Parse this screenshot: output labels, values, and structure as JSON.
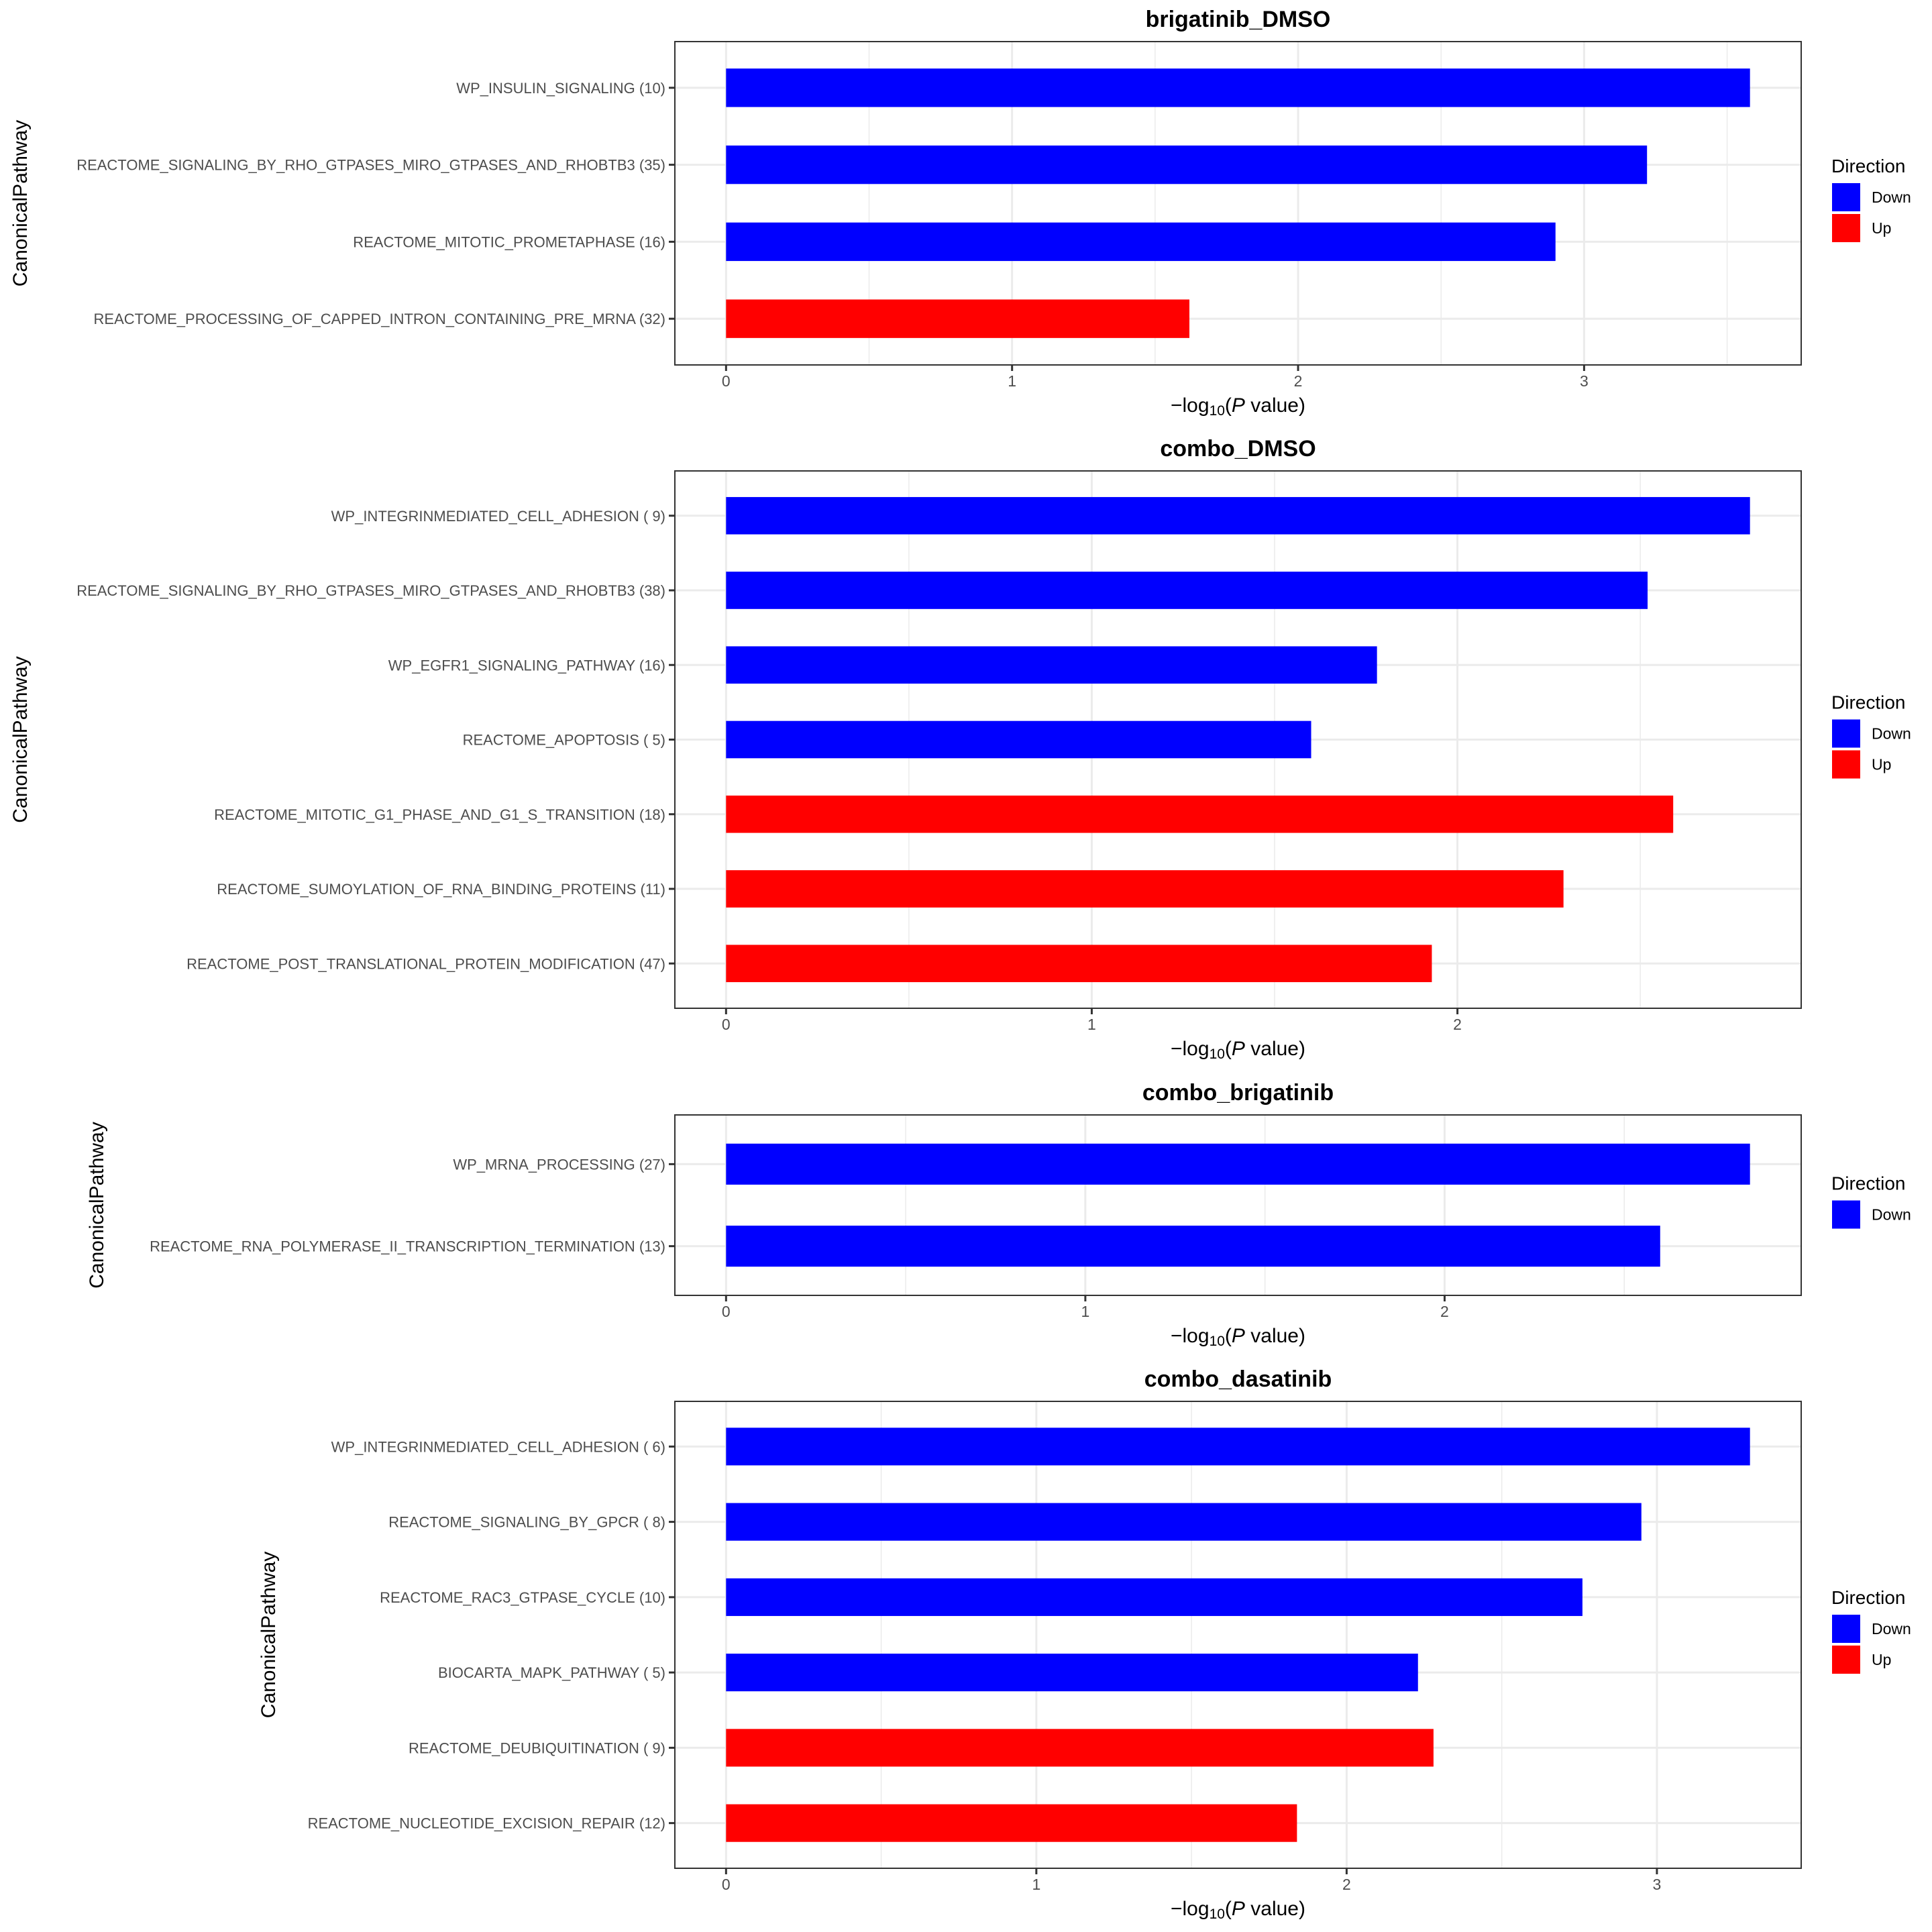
{
  "chart_data": [
    {
      "type": "bar",
      "orientation": "horizontal",
      "title": "brigatinib_DMSO",
      "xlabel": "-log10(P value)",
      "xlabel_parts": {
        "prefix": "−log",
        "sub": "10",
        "open": "(",
        "italic": "P",
        "rest": " value)"
      },
      "ylabel": "CanonicalPathway",
      "x_ticks": [
        "0",
        "1",
        "2",
        "3"
      ],
      "grid": true,
      "legend": {
        "title": "Direction",
        "position": "right",
        "entries": [
          {
            "label": "Down",
            "color": "#0000ff"
          },
          {
            "label": "Up",
            "color": "#ff0000"
          }
        ]
      },
      "categories": [
        "WP_INSULIN_SIGNALING (10)",
        "REACTOME_SIGNALING_BY_RHO_GTPASES_MIRO_GTPASES_AND_RHOBTB3 (35)",
        "REACTOME_MITOTIC_PROMETAPHASE (16)",
        "REACTOME_PROCESSING_OF_CAPPED_INTRON_CONTAINING_PRE_MRNA (32)"
      ],
      "values": [
        3.58,
        3.22,
        2.9,
        1.62
      ],
      "direction": [
        "Down",
        "Down",
        "Down",
        "Up"
      ]
    },
    {
      "type": "bar",
      "orientation": "horizontal",
      "title": "combo_DMSO",
      "xlabel": "-log10(P value)",
      "xlabel_parts": {
        "prefix": "−log",
        "sub": "10",
        "open": "(",
        "italic": "P",
        "rest": " value)"
      },
      "ylabel": "CanonicalPathway",
      "x_ticks": [
        "0",
        "1",
        "2"
      ],
      "grid": true,
      "legend": {
        "title": "Direction",
        "position": "right",
        "entries": [
          {
            "label": "Down",
            "color": "#0000ff"
          },
          {
            "label": "Up",
            "color": "#ff0000"
          }
        ]
      },
      "categories": [
        "WP_INTEGRINMEDIATED_CELL_ADHESION ( 9)",
        "REACTOME_SIGNALING_BY_RHO_GTPASES_MIRO_GTPASES_AND_RHOBTB3 (38)",
        "WP_EGFR1_SIGNALING_PATHWAY (16)",
        "REACTOME_APOPTOSIS ( 5)",
        "REACTOME_MITOTIC_G1_PHASE_AND_G1_S_TRANSITION (18)",
        "REACTOME_SUMOYLATION_OF_RNA_BINDING_PROTEINS (11)",
        "REACTOME_POST_TRANSLATIONAL_PROTEIN_MODIFICATION (47)"
      ],
      "values": [
        2.8,
        2.52,
        1.78,
        1.6,
        2.59,
        2.29,
        1.93
      ],
      "direction": [
        "Down",
        "Down",
        "Down",
        "Down",
        "Up",
        "Up",
        "Up"
      ]
    },
    {
      "type": "bar",
      "orientation": "horizontal",
      "title": "combo_brigatinib",
      "xlabel": "-log10(P value)",
      "xlabel_parts": {
        "prefix": "−log",
        "sub": "10",
        "open": "(",
        "italic": "P",
        "rest": " value)"
      },
      "ylabel": "CanonicalPathway",
      "x_ticks": [
        "0",
        "1",
        "2"
      ],
      "grid": true,
      "legend": {
        "title": "Direction",
        "position": "right",
        "entries": [
          {
            "label": "Down",
            "color": "#0000ff"
          }
        ]
      },
      "categories": [
        "WP_MRNA_PROCESSING (27)",
        "REACTOME_RNA_POLYMERASE_II_TRANSCRIPTION_TERMINATION (13)"
      ],
      "values": [
        2.85,
        2.6
      ],
      "direction": [
        "Down",
        "Down"
      ]
    },
    {
      "type": "bar",
      "orientation": "horizontal",
      "title": "combo_dasatinib",
      "xlabel": "-log10(P value)",
      "xlabel_parts": {
        "prefix": "−log",
        "sub": "10",
        "open": "(",
        "italic": "P",
        "rest": " value)"
      },
      "ylabel": "CanonicalPathway",
      "x_ticks": [
        "0",
        "1",
        "2",
        "3"
      ],
      "grid": true,
      "legend": {
        "title": "Direction",
        "position": "right",
        "entries": [
          {
            "label": "Down",
            "color": "#0000ff"
          },
          {
            "label": "Up",
            "color": "#ff0000"
          }
        ]
      },
      "categories": [
        "WP_INTEGRINMEDIATED_CELL_ADHESION ( 6)",
        "REACTOME_SIGNALING_BY_GPCR ( 8)",
        "REACTOME_RAC3_GTPASE_CYCLE (10)",
        "BIOCARTA_MAPK_PATHWAY ( 5)",
        "REACTOME_DEUBIQUITINATION ( 9)",
        "REACTOME_NUCLEOTIDE_EXCISION_REPAIR (12)"
      ],
      "values": [
        3.3,
        2.95,
        2.76,
        2.23,
        2.28,
        1.84
      ],
      "direction": [
        "Down",
        "Down",
        "Down",
        "Down",
        "Up",
        "Up"
      ]
    }
  ],
  "colors": {
    "Down": "#0000ff",
    "Up": "#ff0000"
  }
}
